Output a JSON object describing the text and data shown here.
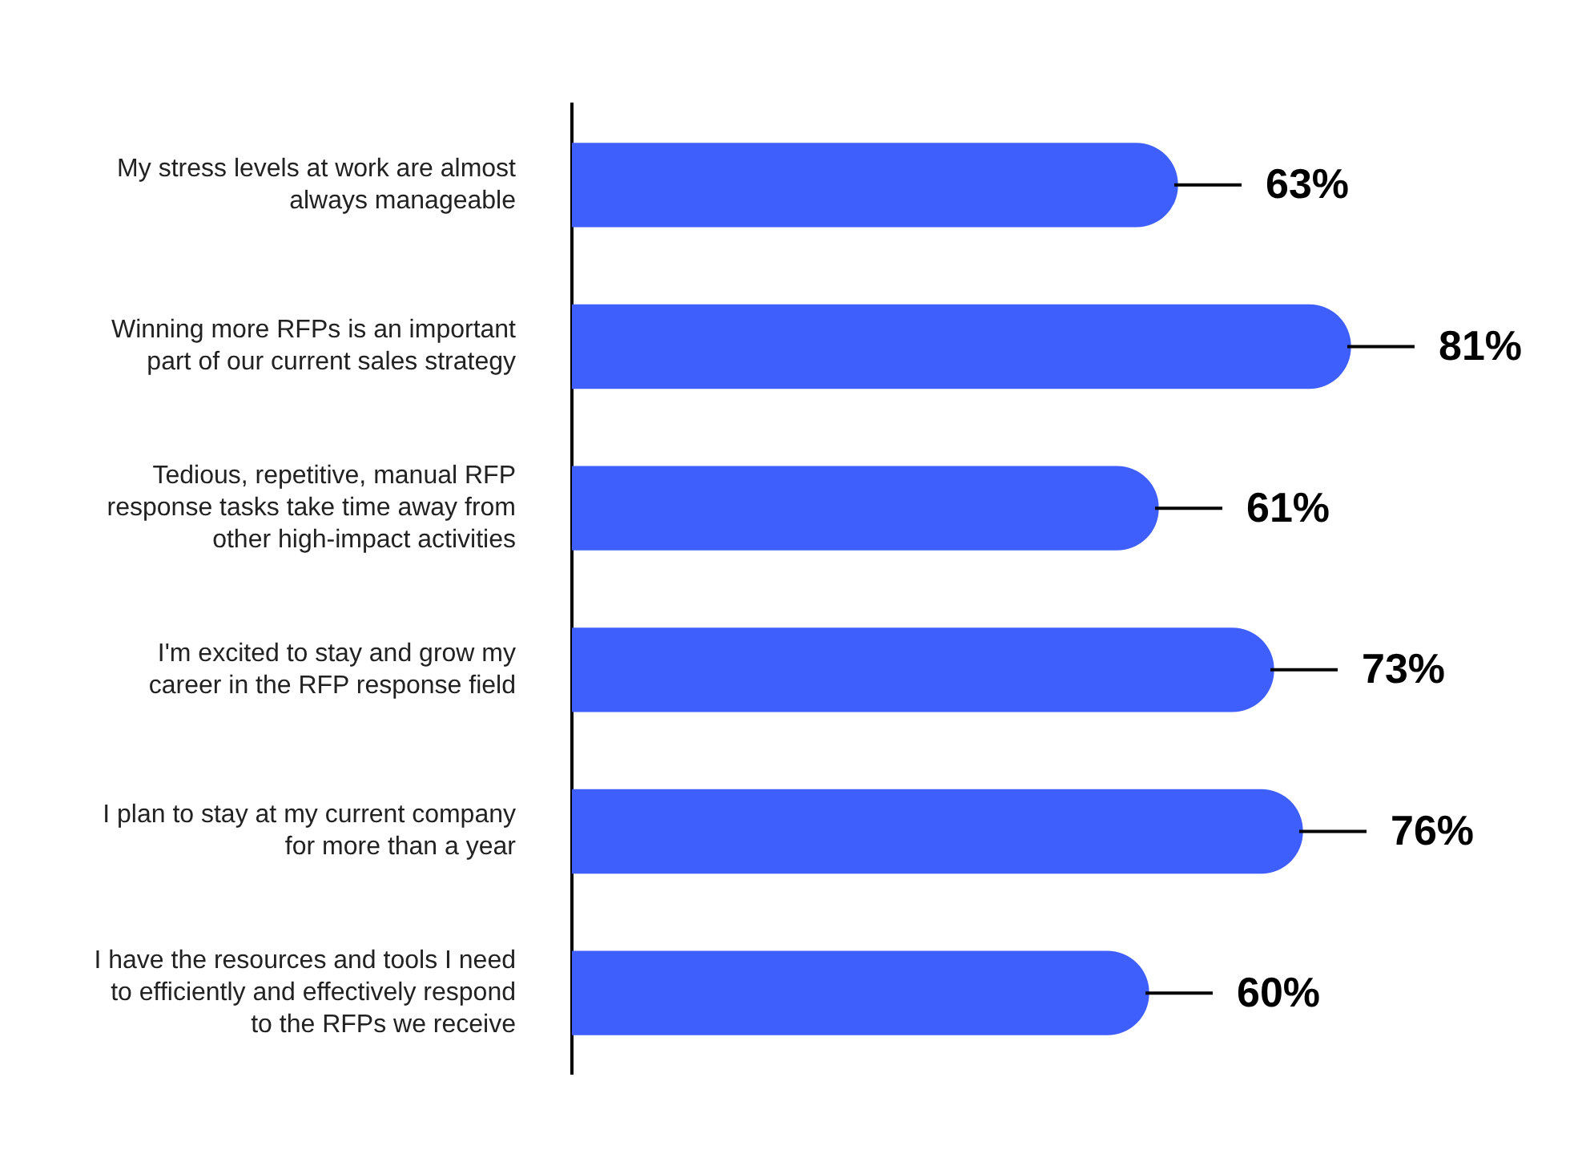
{
  "chart_data": {
    "type": "bar",
    "orientation": "horizontal",
    "categories": [
      "My stress levels at work are almost always manageable",
      "Winning more RFPs is an important part of our current sales strategy",
      "Tedious, repetitive, manual RFP response tasks take time away from other high-impact activities",
      "I'm excited to stay and grow my career in the RFP response field",
      "I plan to stay at my current company for more than a year",
      "I have the resources and tools I need to efficiently and effectively respond to the RFPs we receive"
    ],
    "values": [
      63,
      81,
      61,
      73,
      76,
      60
    ],
    "value_labels": [
      "63%",
      "81%",
      "61%",
      "73%",
      "76%",
      "60%"
    ],
    "color": "#3f5ffc",
    "tick_labels": "y",
    "legend": false
  }
}
